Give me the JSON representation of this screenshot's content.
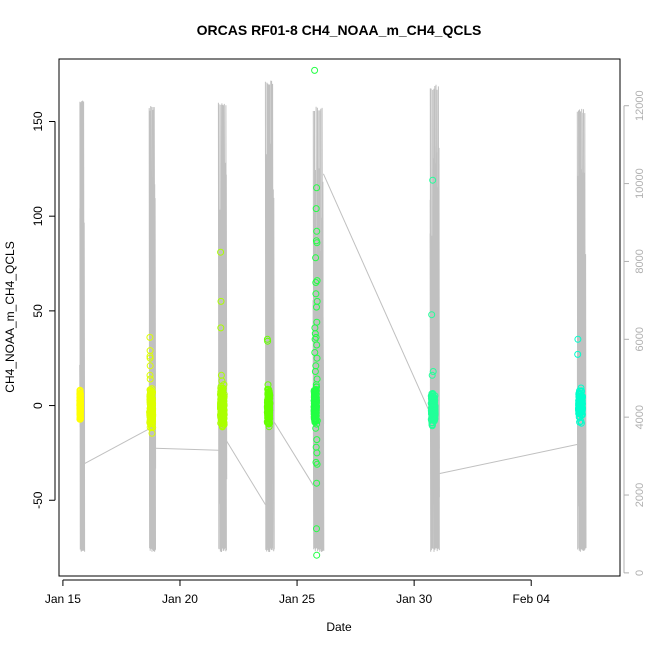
{
  "chart_data": {
    "type": "scatter",
    "title": "ORCAS RF01-8 CH4_NOAA_m_CH4_QCLS",
    "xlabel": "Date",
    "ylabel": "CH4_NOAA_m_CH4_QCLS",
    "xlim": [
      "2016-01-14T20:00",
      "2016-02-07T19:00"
    ],
    "ylim": [
      -90,
      183
    ],
    "y2lim": [
      -80,
      13200
    ],
    "x_ticks": [
      "Jan 15",
      "Jan 20",
      "Jan 25",
      "Jan 30",
      "Feb 04"
    ],
    "y_ticks": [
      -50,
      0,
      50,
      100,
      150
    ],
    "y2_ticks": [
      0,
      2000,
      4000,
      6000,
      8000,
      10000,
      12000
    ],
    "grid": false,
    "legend": "none",
    "colors": {
      "altitude_line": "#c0c0c0",
      "flights": [
        "#ffff00",
        "#ddff00",
        "#aaff00",
        "#66ff00",
        "#22ff44",
        "#22ff99",
        "#00ffcc"
      ]
    },
    "series": [
      {
        "flight": 1,
        "color": "#ffff00",
        "core": {
          "x_start": "2016-01-15T17:25",
          "x_end": "2016-01-15T17:55",
          "y_min": -5,
          "y_max": 6
        },
        "outliers": []
      },
      {
        "flight": 2,
        "color": "#ddff00",
        "core": {
          "x_start": "2016-01-18T17:00",
          "x_end": "2016-01-18T20:00",
          "y_min": -10,
          "y_max": 5
        },
        "outliers": [
          {
            "x": "2016-01-18T17:10",
            "y": 36
          },
          {
            "x": "2016-01-18T17:20",
            "y": 29
          },
          {
            "x": "2016-01-18T17:15",
            "y": 26
          },
          {
            "x": "2016-01-18T17:25",
            "y": 25
          },
          {
            "x": "2016-01-18T17:30",
            "y": 21
          },
          {
            "x": "2016-01-18T17:18",
            "y": 16
          },
          {
            "x": "2016-01-18T17:28",
            "y": 14
          },
          {
            "x": "2016-01-18T17:40",
            "y": 7
          }
        ]
      },
      {
        "flight": 3,
        "color": "#aaff00",
        "core": {
          "x_start": "2016-01-21T17:30",
          "x_end": "2016-01-21T21:20",
          "y_min": -9,
          "y_max": 6
        },
        "outliers": [
          {
            "x": "2016-01-21T17:40",
            "y": 81
          },
          {
            "x": "2016-01-21T18:00",
            "y": 55
          },
          {
            "x": "2016-01-21T17:50",
            "y": 41
          },
          {
            "x": "2016-01-21T18:30",
            "y": 16
          },
          {
            "x": "2016-01-21T19:00",
            "y": 13
          },
          {
            "x": "2016-01-21T18:10",
            "y": 10
          },
          {
            "x": "2016-01-21T19:30",
            "y": -11
          }
        ]
      },
      {
        "flight": 4,
        "color": "#66ff00",
        "core": {
          "x_start": "2016-01-23T17:30",
          "x_end": "2016-01-23T20:00",
          "y_min": -8,
          "y_max": 6
        },
        "outliers": [
          {
            "x": "2016-01-23T17:35",
            "y": 35
          },
          {
            "x": "2016-01-23T17:50",
            "y": 34
          },
          {
            "x": "2016-01-23T18:10",
            "y": 11
          },
          {
            "x": "2016-01-23T18:40",
            "y": 7
          }
        ]
      },
      {
        "flight": 5,
        "color": "#22ff44",
        "core": {
          "x_start": "2016-01-25T17:30",
          "x_end": "2016-01-25T20:00",
          "y_min": -6,
          "y_max": 6
        },
        "outliers": [
          {
            "x": "2016-01-25T18:00",
            "y": 177
          },
          {
            "x": "2016-01-25T20:00",
            "y": 115
          },
          {
            "x": "2016-01-25T19:40",
            "y": 104
          },
          {
            "x": "2016-01-25T20:10",
            "y": 92
          },
          {
            "x": "2016-01-25T19:50",
            "y": 87
          },
          {
            "x": "2016-01-25T20:20",
            "y": 86
          },
          {
            "x": "2016-01-25T19:00",
            "y": 78
          },
          {
            "x": "2016-01-25T20:30",
            "y": 66
          },
          {
            "x": "2016-01-25T19:10",
            "y": 65
          },
          {
            "x": "2016-01-25T19:20",
            "y": 59
          },
          {
            "x": "2016-01-25T20:40",
            "y": 55
          },
          {
            "x": "2016-01-25T19:55",
            "y": 52
          },
          {
            "x": "2016-01-25T20:15",
            "y": 44
          },
          {
            "x": "2016-01-25T18:20",
            "y": 41
          },
          {
            "x": "2016-01-25T18:40",
            "y": 38
          },
          {
            "x": "2016-01-25T19:30",
            "y": 36
          },
          {
            "x": "2016-01-25T18:30",
            "y": 35
          },
          {
            "x": "2016-01-25T20:05",
            "y": 32
          },
          {
            "x": "2016-01-25T18:10",
            "y": 28
          },
          {
            "x": "2016-01-25T20:25",
            "y": 25
          },
          {
            "x": "2016-01-25T19:15",
            "y": 21
          },
          {
            "x": "2016-01-25T18:50",
            "y": 18
          },
          {
            "x": "2016-01-25T20:35",
            "y": 14
          },
          {
            "x": "2016-01-25T19:45",
            "y": 11
          },
          {
            "x": "2016-01-25T20:45",
            "y": -8
          },
          {
            "x": "2016-01-25T19:05",
            "y": -12
          },
          {
            "x": "2016-01-25T20:12",
            "y": -18
          },
          {
            "x": "2016-01-25T19:35",
            "y": -22
          },
          {
            "x": "2016-01-25T20:22",
            "y": -25
          },
          {
            "x": "2016-01-25T19:25",
            "y": -30
          },
          {
            "x": "2016-01-25T20:32",
            "y": -31
          },
          {
            "x": "2016-01-25T20:00",
            "y": -41
          },
          {
            "x": "2016-01-25T19:58",
            "y": -65
          },
          {
            "x": "2016-01-25T20:08",
            "y": -79
          }
        ]
      },
      {
        "flight": 6,
        "color": "#22ff99",
        "core": {
          "x_start": "2016-01-30T17:30",
          "x_end": "2016-01-30T21:30",
          "y_min": -8,
          "y_max": 5
        },
        "outliers": [
          {
            "x": "2016-01-30T19:00",
            "y": 119
          },
          {
            "x": "2016-01-30T18:00",
            "y": 48
          },
          {
            "x": "2016-01-30T19:30",
            "y": 18
          },
          {
            "x": "2016-01-30T18:30",
            "y": 16
          },
          {
            "x": "2016-01-30T19:15",
            "y": 6
          }
        ]
      },
      {
        "flight": 7,
        "color": "#00ffcc",
        "core": {
          "x_start": "2016-02-06T00:30",
          "x_end": "2016-02-06T04:30",
          "y_min": -5,
          "y_max": 6
        },
        "outliers": [
          {
            "x": "2016-02-05T23:50",
            "y": 35
          },
          {
            "x": "2016-02-05T23:40",
            "y": 27
          }
        ]
      }
    ],
    "altitude": [
      {
        "x_start": "2016-01-15T17:20",
        "x_end": "2016-01-15T21:30",
        "peak": 12150
      },
      {
        "x_start": "2016-01-18T16:30",
        "x_end": "2016-01-18T22:30",
        "peak": 12000
      },
      {
        "x_start": "2016-01-21T15:30",
        "x_end": "2016-01-21T23:30",
        "peak": 12150
      },
      {
        "x_start": "2016-01-23T15:40",
        "x_end": "2016-01-24T00:00",
        "peak": 12650
      },
      {
        "x_start": "2016-01-25T16:40",
        "x_end": "2016-01-26T03:00",
        "peak": 11980
      },
      {
        "x_start": "2016-01-30T16:20",
        "x_end": "2016-01-31T01:40",
        "peak": 12550
      },
      {
        "x_start": "2016-02-05T23:30",
        "x_end": "2016-02-06T07:30",
        "peak": 11920
      }
    ],
    "altitude_ferry": [
      {
        "x": "2016-01-15T21:30",
        "y": 2800
      },
      {
        "x": "2016-01-18T16:30",
        "y": 3700
      },
      {
        "x": "2016-01-18T22:30",
        "y": 3200
      },
      {
        "x": "2016-01-21T15:30",
        "y": 3150
      },
      {
        "x": "2016-01-21T23:30",
        "y": 3400
      },
      {
        "x": "2016-01-23T15:40",
        "y": 1750
      },
      {
        "x": "2016-01-24T00:00",
        "y": 3900
      },
      {
        "x": "2016-01-25T16:40",
        "y": 2250
      },
      {
        "x": "2016-01-26T03:00",
        "y": 10250
      },
      {
        "x": "2016-01-30T16:20",
        "y": 4100
      },
      {
        "x": "2016-01-31T01:40",
        "y": 2550
      },
      {
        "x": "2016-02-05T23:30",
        "y": 3300
      }
    ]
  }
}
